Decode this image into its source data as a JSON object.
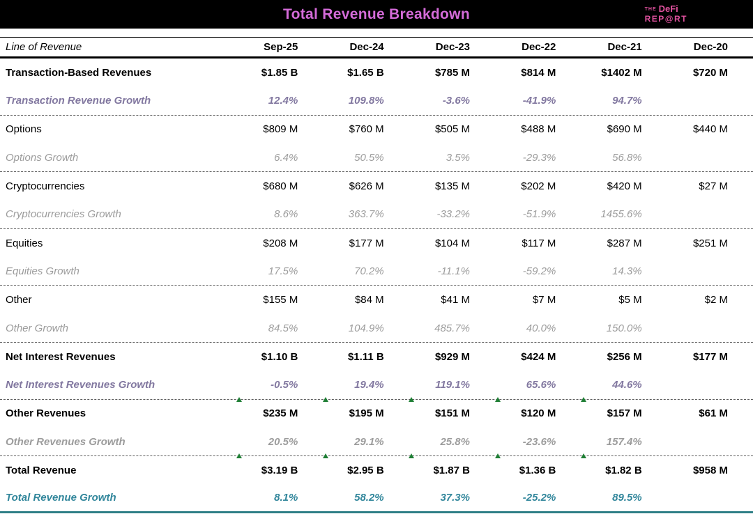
{
  "header": {
    "logo": {
      "the": "THE",
      "defi": "DeFi",
      "report": "REP@RT"
    }
  },
  "chart_data": {
    "type": "table",
    "title": "Total Revenue Breakdown",
    "columns": [
      "Line of Revenue",
      "Sep-25",
      "Dec-24",
      "Dec-23",
      "Dec-22",
      "Dec-21",
      "Dec-20"
    ],
    "rows": [
      {
        "label": "Transaction-Based Revenues",
        "style": "bold",
        "separator": false,
        "markers": false,
        "values": [
          "$1.85 B",
          "$1.65 B",
          "$785 M",
          "$814 M",
          "$1402 M",
          "$720 M"
        ]
      },
      {
        "label": "Transaction Revenue Growth",
        "style": "growth-purple",
        "separator": true,
        "markers": false,
        "values": [
          "12.4%",
          "109.8%",
          "-3.6%",
          "-41.9%",
          "94.7%",
          ""
        ]
      },
      {
        "label": "Options",
        "style": "plain",
        "separator": false,
        "markers": false,
        "values": [
          "$809 M",
          "$760 M",
          "$505 M",
          "$488 M",
          "$690 M",
          "$440 M"
        ]
      },
      {
        "label": "Options Growth",
        "style": "growth-gray",
        "separator": true,
        "markers": false,
        "values": [
          "6.4%",
          "50.5%",
          "3.5%",
          "-29.3%",
          "56.8%",
          ""
        ]
      },
      {
        "label": "Cryptocurrencies",
        "style": "plain",
        "separator": false,
        "markers": false,
        "values": [
          "$680 M",
          "$626 M",
          "$135 M",
          "$202 M",
          "$420 M",
          "$27 M"
        ]
      },
      {
        "label": "Cryptocurrencies Growth",
        "style": "growth-gray",
        "separator": true,
        "markers": false,
        "values": [
          "8.6%",
          "363.7%",
          "-33.2%",
          "-51.9%",
          "1455.6%",
          ""
        ]
      },
      {
        "label": "Equities",
        "style": "plain",
        "separator": false,
        "markers": false,
        "values": [
          "$208 M",
          "$177 M",
          "$104 M",
          "$117 M",
          "$287 M",
          "$251 M"
        ]
      },
      {
        "label": "Equities Growth",
        "style": "growth-gray",
        "separator": true,
        "markers": false,
        "values": [
          "17.5%",
          "70.2%",
          "-11.1%",
          "-59.2%",
          "14.3%",
          ""
        ]
      },
      {
        "label": "Other",
        "style": "plain",
        "separator": false,
        "markers": false,
        "values": [
          "$155 M",
          "$84 M",
          "$41 M",
          "$7 M",
          "$5 M",
          "$2 M"
        ]
      },
      {
        "label": "Other Growth",
        "style": "growth-gray",
        "separator": true,
        "markers": false,
        "values": [
          "84.5%",
          "104.9%",
          "485.7%",
          "40.0%",
          "150.0%",
          ""
        ]
      },
      {
        "label": "Net Interest Revenues",
        "style": "bold",
        "separator": false,
        "markers": false,
        "values": [
          "$1.10 B",
          "$1.11 B",
          "$929 M",
          "$424 M",
          "$256 M",
          "$177 M"
        ]
      },
      {
        "label": "Net Interest Revenues Growth",
        "style": "growth-purple",
        "separator": true,
        "markers": true,
        "values": [
          "-0.5%",
          "19.4%",
          "119.1%",
          "65.6%",
          "44.6%",
          ""
        ]
      },
      {
        "label": "Other Revenues",
        "style": "bold",
        "separator": false,
        "markers": false,
        "values": [
          "$235 M",
          "$195 M",
          "$151 M",
          "$120 M",
          "$157 M",
          "$61 M"
        ]
      },
      {
        "label": "Other Revenues Growth",
        "style": "growth-bold-gray",
        "separator": true,
        "markers": true,
        "values": [
          "20.5%",
          "29.1%",
          "25.8%",
          "-23.6%",
          "157.4%",
          ""
        ]
      },
      {
        "label": "Total Revenue",
        "style": "bold",
        "separator": false,
        "markers": false,
        "values": [
          "$3.19 B",
          "$2.95 B",
          "$1.87 B",
          "$1.36 B",
          "$1.82 B",
          "$958 M"
        ]
      },
      {
        "label": "Total Revenue Growth",
        "style": "growth-teal",
        "separator": false,
        "markers": false,
        "values": [
          "8.1%",
          "58.2%",
          "37.3%",
          "-25.2%",
          "89.5%",
          ""
        ]
      }
    ]
  },
  "colors": {
    "title_pink": "#d46bd8",
    "logo_pink": "#e0519e",
    "growth_purple": "#8278a0",
    "growth_gray": "#9c9c9c",
    "growth_teal": "#31869b",
    "marker_green": "#1e7e34",
    "total_border": "#2e7f86"
  }
}
